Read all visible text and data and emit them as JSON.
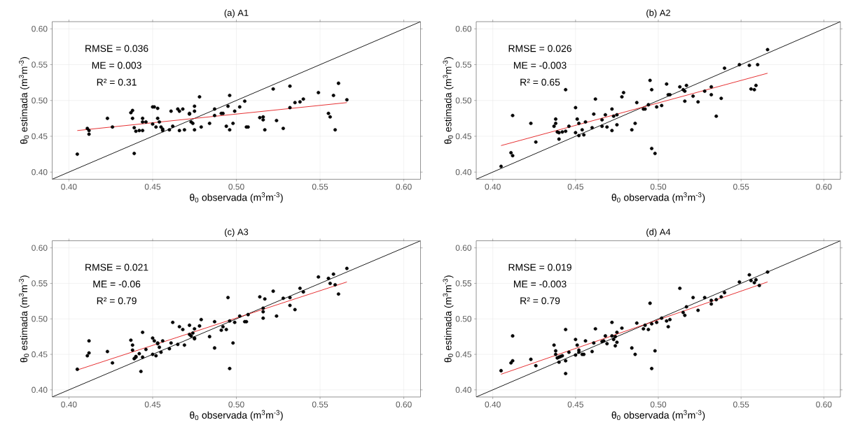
{
  "chart_data": [
    {
      "type": "scatter",
      "title": "(a) A1",
      "xlabel": "θ$_{0}$ observada (m$^{3}$m$^{-3}$)",
      "ylabel": "θ$_{0}$ estimada (m$^{3}$m$^{-3}$)",
      "xlim": [
        0.39,
        0.61
      ],
      "ylim": [
        0.39,
        0.61
      ],
      "xticks": [
        {
          "value": 0.4,
          "label": "0.40"
        },
        {
          "value": 0.45,
          "label": "0.45"
        },
        {
          "value": 0.5,
          "label": "0.50"
        },
        {
          "value": 0.55,
          "label": "0.55"
        },
        {
          "value": 0.6,
          "label": "0.60"
        }
      ],
      "yticks": [
        {
          "value": 0.4,
          "label": "0.40"
        },
        {
          "value": 0.45,
          "label": "0.45"
        },
        {
          "value": 0.5,
          "label": "0.50"
        },
        {
          "value": 0.55,
          "label": "0.55"
        },
        {
          "value": 0.6,
          "label": "0.60"
        }
      ],
      "grid": true,
      "marker": "circle",
      "annotations": [
        "RMSE = 0.036",
        "ME = 0.003",
        "R² = 0.31"
      ],
      "series": [
        {
          "type": "scatter",
          "color": "#000000",
          "x": [
            0.405,
            0.411,
            0.412,
            0.412,
            0.423,
            0.426,
            0.437,
            0.438,
            0.438,
            0.439,
            0.439,
            0.44,
            0.442,
            0.444,
            0.444,
            0.444,
            0.446,
            0.45,
            0.45,
            0.451,
            0.452,
            0.453,
            0.453,
            0.454,
            0.455,
            0.456,
            0.456,
            0.46,
            0.461,
            0.462,
            0.465,
            0.466,
            0.466,
            0.468,
            0.469,
            0.472,
            0.472,
            0.473,
            0.474,
            0.475,
            0.475,
            0.475,
            0.478,
            0.479,
            0.484,
            0.487,
            0.487,
            0.491,
            0.492,
            0.494,
            0.495,
            0.496,
            0.496,
            0.498,
            0.499,
            0.502,
            0.505,
            0.506,
            0.507,
            0.514,
            0.516,
            0.516,
            0.517,
            0.522,
            0.524,
            0.528,
            0.532,
            0.532,
            0.535,
            0.538,
            0.54,
            0.549,
            0.555,
            0.556,
            0.558,
            0.559,
            0.561,
            0.566
          ],
          "values": [
            0.425,
            0.461,
            0.458,
            0.453,
            0.475,
            0.463,
            0.483,
            0.486,
            0.475,
            0.426,
            0.462,
            0.457,
            0.458,
            0.475,
            0.47,
            0.458,
            0.47,
            0.467,
            0.491,
            0.491,
            0.463,
            0.475,
            0.489,
            0.47,
            0.463,
            0.46,
            0.458,
            0.459,
            0.485,
            0.464,
            0.488,
            0.458,
            0.485,
            0.488,
            0.459,
            0.482,
            0.481,
            0.47,
            0.468,
            0.485,
            0.492,
            0.459,
            0.505,
            0.463,
            0.468,
            0.479,
            0.488,
            0.482,
            0.482,
            0.464,
            0.492,
            0.507,
            0.459,
            0.468,
            0.485,
            0.491,
            0.499,
            0.463,
            0.463,
            0.476,
            0.477,
            0.473,
            0.459,
            0.516,
            0.472,
            0.461,
            0.52,
            0.49,
            0.497,
            0.498,
            0.502,
            0.511,
            0.482,
            0.477,
            0.507,
            0.459,
            0.524,
            0.501
          ]
        },
        {
          "type": "line",
          "marker": "none",
          "color": "#000000",
          "x": [
            0.39,
            0.61
          ],
          "values": [
            0.39,
            0.61
          ]
        },
        {
          "type": "line",
          "marker": "none",
          "color": "#e31a1c",
          "x": [
            0.405,
            0.566
          ],
          "values": [
            0.458,
            0.497
          ]
        }
      ]
    },
    {
      "type": "scatter",
      "title": "(b) A2",
      "xlabel": "θ$_{0}$ observada (m$^{3}$m$^{-3}$)",
      "ylabel": "θ$_{0}$ estimada (m$^{3}$m$^{-3}$)",
      "xlim": [
        0.39,
        0.61
      ],
      "ylim": [
        0.39,
        0.61
      ],
      "xticks": [
        {
          "value": 0.4,
          "label": "0.40"
        },
        {
          "value": 0.45,
          "label": "0.45"
        },
        {
          "value": 0.5,
          "label": "0.50"
        },
        {
          "value": 0.55,
          "label": "0.55"
        },
        {
          "value": 0.6,
          "label": "0.60"
        }
      ],
      "yticks": [
        {
          "value": 0.4,
          "label": "0.40"
        },
        {
          "value": 0.45,
          "label": "0.45"
        },
        {
          "value": 0.5,
          "label": "0.50"
        },
        {
          "value": 0.55,
          "label": "0.55"
        },
        {
          "value": 0.6,
          "label": "0.60"
        }
      ],
      "grid": true,
      "marker": "circle",
      "annotations": [
        "RMSE = 0.026",
        "ME = -0.003",
        "R² = 0.65"
      ],
      "series": [
        {
          "type": "scatter",
          "color": "#000000",
          "x": [
            0.405,
            0.411,
            0.412,
            0.412,
            0.423,
            0.426,
            0.437,
            0.438,
            0.438,
            0.439,
            0.44,
            0.44,
            0.442,
            0.444,
            0.444,
            0.446,
            0.45,
            0.45,
            0.451,
            0.452,
            0.452,
            0.454,
            0.455,
            0.456,
            0.46,
            0.461,
            0.462,
            0.466,
            0.466,
            0.468,
            0.469,
            0.472,
            0.472,
            0.473,
            0.475,
            0.475,
            0.478,
            0.479,
            0.484,
            0.486,
            0.487,
            0.491,
            0.492,
            0.494,
            0.495,
            0.496,
            0.496,
            0.498,
            0.499,
            0.502,
            0.505,
            0.506,
            0.507,
            0.513,
            0.515,
            0.516,
            0.516,
            0.517,
            0.521,
            0.524,
            0.528,
            0.532,
            0.532,
            0.535,
            0.538,
            0.54,
            0.549,
            0.555,
            0.556,
            0.558,
            0.559,
            0.56,
            0.566
          ],
          "values": [
            0.408,
            0.427,
            0.423,
            0.479,
            0.468,
            0.442,
            0.464,
            0.474,
            0.468,
            0.456,
            0.446,
            0.455,
            0.456,
            0.457,
            0.515,
            0.464,
            0.49,
            0.455,
            0.474,
            0.451,
            0.468,
            0.459,
            0.452,
            0.47,
            0.462,
            0.481,
            0.502,
            0.473,
            0.464,
            0.48,
            0.463,
            0.488,
            0.458,
            0.478,
            0.48,
            0.466,
            0.505,
            0.511,
            0.459,
            0.468,
            0.497,
            0.488,
            0.488,
            0.494,
            0.528,
            0.515,
            0.433,
            0.426,
            0.491,
            0.493,
            0.523,
            0.508,
            0.508,
            0.519,
            0.515,
            0.513,
            0.499,
            0.521,
            0.506,
            0.498,
            0.513,
            0.519,
            0.508,
            0.478,
            0.503,
            0.545,
            0.55,
            0.549,
            0.516,
            0.515,
            0.521,
            0.55,
            0.571
          ]
        },
        {
          "type": "line",
          "marker": "none",
          "color": "#000000",
          "x": [
            0.39,
            0.61
          ],
          "values": [
            0.39,
            0.61
          ]
        },
        {
          "type": "line",
          "marker": "none",
          "color": "#e31a1c",
          "x": [
            0.405,
            0.566
          ],
          "values": [
            0.437,
            0.538
          ]
        }
      ]
    },
    {
      "type": "scatter",
      "title": "(c) A3",
      "xlabel": "θ$_{0}$ observada (m$^{3}$m$^{-3}$)",
      "ylabel": "θ$_{0}$ estimada (m$^{3}$m$^{-3}$)",
      "xlim": [
        0.39,
        0.61
      ],
      "ylim": [
        0.39,
        0.61
      ],
      "xticks": [
        {
          "value": 0.4,
          "label": "0.40"
        },
        {
          "value": 0.45,
          "label": "0.45"
        },
        {
          "value": 0.5,
          "label": "0.50"
        },
        {
          "value": 0.55,
          "label": "0.55"
        },
        {
          "value": 0.6,
          "label": "0.60"
        }
      ],
      "yticks": [
        {
          "value": 0.4,
          "label": "0.40"
        },
        {
          "value": 0.45,
          "label": "0.45"
        },
        {
          "value": 0.5,
          "label": "0.50"
        },
        {
          "value": 0.55,
          "label": "0.55"
        },
        {
          "value": 0.6,
          "label": "0.60"
        }
      ],
      "grid": true,
      "marker": "circle",
      "annotations": [
        "RMSE = 0.021",
        "ME = -0.06",
        "R² = 0.79"
      ],
      "series": [
        {
          "type": "scatter",
          "color": "#000000",
          "x": [
            0.405,
            0.411,
            0.412,
            0.412,
            0.423,
            0.426,
            0.437,
            0.438,
            0.438,
            0.439,
            0.44,
            0.44,
            0.442,
            0.443,
            0.444,
            0.444,
            0.446,
            0.45,
            0.45,
            0.451,
            0.452,
            0.453,
            0.453,
            0.454,
            0.455,
            0.456,
            0.46,
            0.461,
            0.462,
            0.465,
            0.466,
            0.468,
            0.469,
            0.472,
            0.472,
            0.473,
            0.474,
            0.475,
            0.475,
            0.475,
            0.478,
            0.479,
            0.484,
            0.487,
            0.487,
            0.491,
            0.492,
            0.494,
            0.495,
            0.496,
            0.496,
            0.498,
            0.499,
            0.502,
            0.505,
            0.506,
            0.507,
            0.514,
            0.516,
            0.516,
            0.516,
            0.517,
            0.522,
            0.524,
            0.528,
            0.532,
            0.532,
            0.535,
            0.538,
            0.54,
            0.549,
            0.555,
            0.556,
            0.558,
            0.559,
            0.561,
            0.566
          ],
          "values": [
            0.429,
            0.448,
            0.452,
            0.469,
            0.454,
            0.438,
            0.47,
            0.463,
            0.456,
            0.444,
            0.446,
            0.447,
            0.451,
            0.426,
            0.446,
            0.481,
            0.457,
            0.473,
            0.45,
            0.469,
            0.448,
            0.466,
            0.465,
            0.46,
            0.453,
            0.469,
            0.458,
            0.466,
            0.495,
            0.464,
            0.489,
            0.485,
            0.463,
            0.491,
            0.478,
            0.476,
            0.48,
            0.472,
            0.473,
            0.486,
            0.49,
            0.499,
            0.475,
            0.459,
            0.496,
            0.484,
            0.489,
            0.485,
            0.53,
            0.497,
            0.43,
            0.466,
            0.495,
            0.504,
            0.496,
            0.496,
            0.506,
            0.531,
            0.515,
            0.51,
            0.501,
            0.528,
            0.539,
            0.504,
            0.529,
            0.53,
            0.519,
            0.513,
            0.543,
            0.538,
            0.559,
            0.557,
            0.55,
            0.563,
            0.548,
            0.535,
            0.571
          ]
        },
        {
          "type": "line",
          "marker": "none",
          "color": "#000000",
          "x": [
            0.39,
            0.61
          ],
          "values": [
            0.39,
            0.61
          ]
        },
        {
          "type": "line",
          "marker": "none",
          "color": "#e31a1c",
          "x": [
            0.405,
            0.566
          ],
          "values": [
            0.428,
            0.552
          ]
        }
      ]
    },
    {
      "type": "scatter",
      "title": "(d) A4",
      "xlabel": "θ$_{0}$ observada (m$^{3}$m$^{-3}$)",
      "ylabel": "θ$_{0}$ estimada (m$^{3}$m$^{-3}$)",
      "xlim": [
        0.39,
        0.61
      ],
      "ylim": [
        0.39,
        0.61
      ],
      "xticks": [
        {
          "value": 0.4,
          "label": "0.40"
        },
        {
          "value": 0.45,
          "label": "0.45"
        },
        {
          "value": 0.5,
          "label": "0.50"
        },
        {
          "value": 0.55,
          "label": "0.55"
        },
        {
          "value": 0.6,
          "label": "0.60"
        }
      ],
      "yticks": [
        {
          "value": 0.4,
          "label": "0.40"
        },
        {
          "value": 0.45,
          "label": "0.45"
        },
        {
          "value": 0.5,
          "label": "0.50"
        },
        {
          "value": 0.55,
          "label": "0.55"
        },
        {
          "value": 0.6,
          "label": "0.60"
        }
      ],
      "grid": true,
      "marker": "circle",
      "annotations": [
        "RMSE = 0.019",
        "ME = -0.003",
        "R² = 0.79"
      ],
      "series": [
        {
          "type": "scatter",
          "color": "#000000",
          "x": [
            0.405,
            0.411,
            0.412,
            0.412,
            0.423,
            0.426,
            0.437,
            0.438,
            0.438,
            0.439,
            0.44,
            0.44,
            0.441,
            0.442,
            0.444,
            0.444,
            0.444,
            0.446,
            0.45,
            0.45,
            0.451,
            0.452,
            0.452,
            0.454,
            0.455,
            0.456,
            0.46,
            0.461,
            0.462,
            0.466,
            0.467,
            0.468,
            0.469,
            0.472,
            0.472,
            0.473,
            0.474,
            0.474,
            0.475,
            0.475,
            0.478,
            0.484,
            0.486,
            0.487,
            0.491,
            0.492,
            0.494,
            0.495,
            0.496,
            0.496,
            0.498,
            0.499,
            0.502,
            0.505,
            0.506,
            0.507,
            0.513,
            0.515,
            0.516,
            0.517,
            0.521,
            0.524,
            0.528,
            0.532,
            0.532,
            0.535,
            0.538,
            0.54,
            0.549,
            0.555,
            0.556,
            0.558,
            0.559,
            0.561,
            0.566
          ],
          "values": [
            0.427,
            0.438,
            0.441,
            0.476,
            0.443,
            0.434,
            0.463,
            0.455,
            0.45,
            0.445,
            0.439,
            0.446,
            0.447,
            0.448,
            0.441,
            0.423,
            0.485,
            0.453,
            0.449,
            0.471,
            0.463,
            0.456,
            0.453,
            0.45,
            0.45,
            0.469,
            0.454,
            0.466,
            0.486,
            0.468,
            0.469,
            0.476,
            0.465,
            0.495,
            0.476,
            0.471,
            0.475,
            0.462,
            0.467,
            0.481,
            0.487,
            0.459,
            0.45,
            0.494,
            0.486,
            0.491,
            0.485,
            0.522,
            0.493,
            0.43,
            0.455,
            0.495,
            0.501,
            0.497,
            0.489,
            0.499,
            0.543,
            0.509,
            0.505,
            0.517,
            0.53,
            0.512,
            0.53,
            0.526,
            0.521,
            0.527,
            0.531,
            0.537,
            0.552,
            0.562,
            0.554,
            0.551,
            0.555,
            0.547,
            0.566
          ]
        },
        {
          "type": "line",
          "marker": "none",
          "color": "#000000",
          "x": [
            0.39,
            0.61
          ],
          "values": [
            0.39,
            0.61
          ]
        },
        {
          "type": "line",
          "marker": "none",
          "color": "#e31a1c",
          "x": [
            0.405,
            0.566
          ],
          "values": [
            0.422,
            0.552
          ]
        }
      ]
    }
  ]
}
